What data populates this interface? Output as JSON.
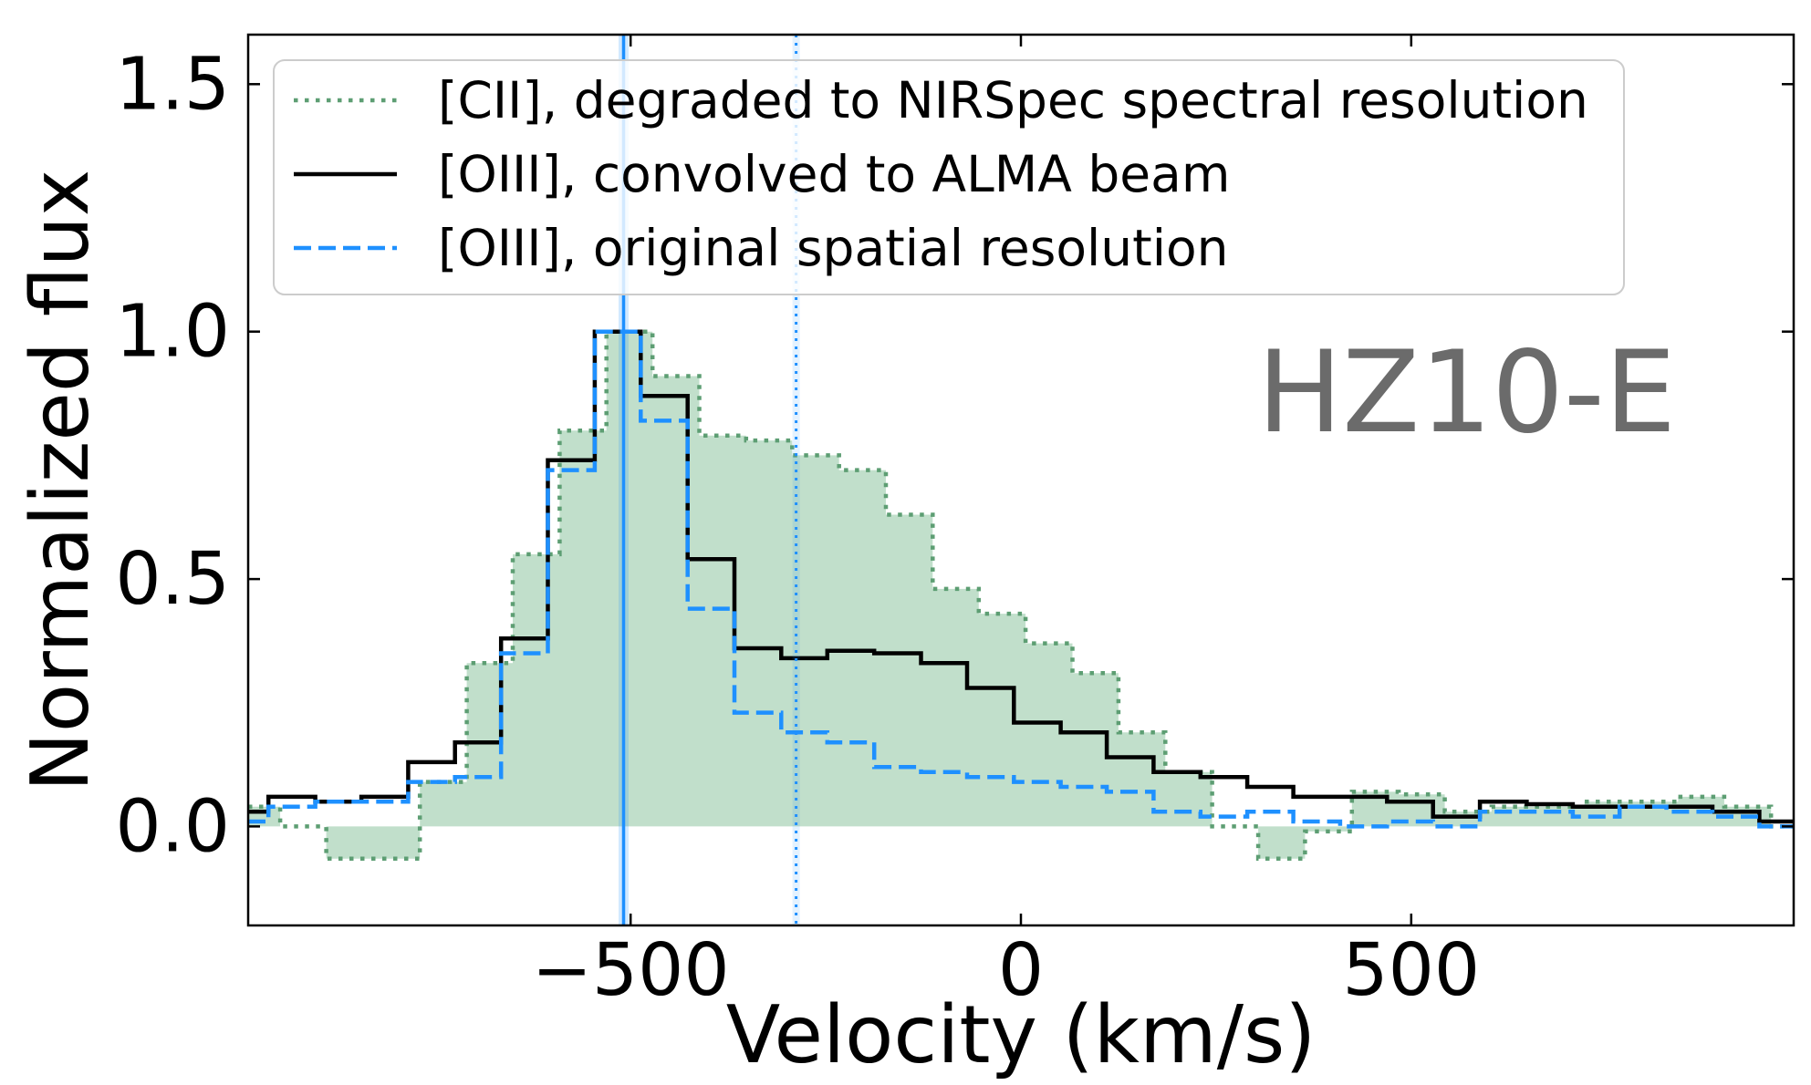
{
  "chart_data": {
    "type": "line",
    "title": "",
    "xlabel": "Velocity (km/s)",
    "ylabel": "Normalized flux",
    "xlim": [
      -990,
      990
    ],
    "ylim": [
      -0.2,
      1.6
    ],
    "xticks": [
      -500,
      0,
      500
    ],
    "xtick_labels": [
      "−500",
      "0",
      "500"
    ],
    "yticks": [
      0.0,
      0.5,
      1.0,
      1.5
    ],
    "ytick_labels": [
      "0.0",
      "0.5",
      "1.0",
      "1.5"
    ],
    "grid": false,
    "legend_location": "top-left",
    "annotation": "HZ10-E",
    "annotation_color": "#6b6b6b",
    "series": [
      {
        "name": "[CII], degraded to NIRSpec spectral resolution",
        "color": "#5d9e73",
        "fill_color": "#c1dfcb",
        "bin_edges": [
          -990,
          -949,
          -890,
          -830,
          -770,
          -710,
          -651,
          -591,
          -531,
          -472,
          -412,
          -352,
          -293,
          -233,
          -173,
          -113,
          -54,
          6,
          66,
          125,
          185,
          245,
          304,
          364,
          424,
          484,
          543,
          603,
          663,
          722,
          782,
          842,
          901,
          961,
          990
        ],
        "values": [
          0.04,
          0.0,
          -0.065,
          -0.065,
          0.09,
          0.33,
          0.55,
          0.8,
          1.0,
          0.91,
          0.79,
          0.78,
          0.75,
          0.72,
          0.63,
          0.48,
          0.43,
          0.37,
          0.31,
          0.19,
          0.11,
          0.0,
          -0.065,
          -0.01,
          0.07,
          0.065,
          0.03,
          0.04,
          0.04,
          0.05,
          0.05,
          0.06,
          0.04,
          0.0
        ]
      },
      {
        "name": "[OIII], convolved to ALMA beam",
        "color": "#000000",
        "bin_edges": [
          -990,
          -964,
          -904,
          -845,
          -785,
          -725,
          -666,
          -606,
          -546,
          -487,
          -427,
          -367,
          -307,
          -248,
          -188,
          -128,
          -69,
          -9,
          51,
          110,
          170,
          230,
          290,
          349,
          409,
          469,
          528,
          588,
          648,
          707,
          767,
          827,
          886,
          946,
          990
        ],
        "values": [
          0.03,
          0.06,
          0.05,
          0.06,
          0.13,
          0.17,
          0.38,
          0.74,
          1.0,
          0.87,
          0.54,
          0.36,
          0.34,
          0.355,
          0.35,
          0.33,
          0.28,
          0.21,
          0.19,
          0.14,
          0.11,
          0.1,
          0.08,
          0.06,
          0.06,
          0.05,
          0.02,
          0.05,
          0.045,
          0.04,
          0.04,
          0.04,
          0.03,
          0.01
        ]
      },
      {
        "name": "[OIII], original spatial resolution",
        "color": "#1e90ff",
        "bin_edges": [
          -990,
          -964,
          -904,
          -845,
          -785,
          -725,
          -666,
          -606,
          -546,
          -487,
          -427,
          -367,
          -307,
          -248,
          -188,
          -128,
          -69,
          -9,
          51,
          110,
          170,
          230,
          290,
          349,
          409,
          469,
          528,
          588,
          648,
          707,
          767,
          827,
          886,
          946,
          990
        ],
        "values": [
          0.01,
          0.04,
          0.05,
          0.05,
          0.09,
          0.1,
          0.35,
          0.72,
          1.0,
          0.82,
          0.44,
          0.23,
          0.19,
          0.17,
          0.12,
          0.11,
          0.1,
          0.09,
          0.08,
          0.07,
          0.03,
          0.02,
          0.03,
          0.01,
          0.0,
          0.01,
          0.0,
          0.03,
          0.03,
          0.02,
          0.04,
          0.03,
          0.02,
          0.0
        ]
      }
    ],
    "vertical_lines": [
      {
        "x": -509,
        "color": "#1e90ff"
      },
      {
        "x": -288,
        "color": "#1e90ff"
      }
    ]
  }
}
